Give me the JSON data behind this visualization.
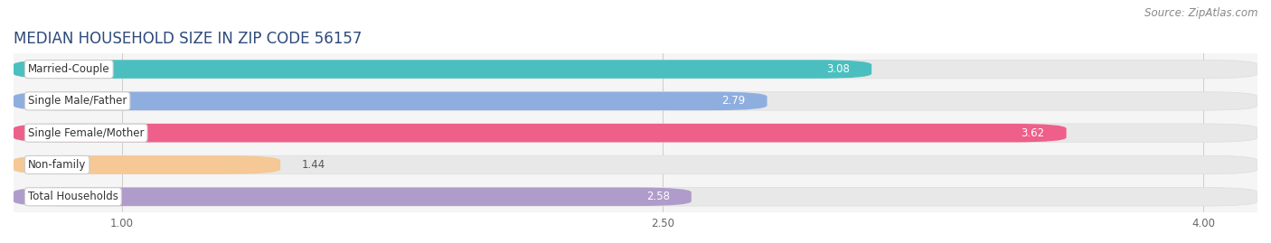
{
  "title": "MEDIAN HOUSEHOLD SIZE IN ZIP CODE 56157",
  "source": "Source: ZipAtlas.com",
  "categories": [
    "Married-Couple",
    "Single Male/Father",
    "Single Female/Mother",
    "Non-family",
    "Total Households"
  ],
  "values": [
    3.08,
    2.79,
    3.62,
    1.44,
    2.58
  ],
  "bar_colors": [
    "#4bbfbf",
    "#8faee0",
    "#ee5f8a",
    "#f5c896",
    "#b09cca"
  ],
  "xlim_left": 0.7,
  "xlim_right": 4.15,
  "xticks": [
    1.0,
    2.5,
    4.0
  ],
  "label_inside_threshold": 2.5,
  "title_fontsize": 12,
  "title_color": "#2e4a7a",
  "source_fontsize": 8.5,
  "bar_label_fontsize": 8.5,
  "category_fontsize": 8.5,
  "bar_height": 0.58,
  "bar_gap": 0.42,
  "background_color": "#ffffff",
  "axes_bg_color": "#f5f5f5",
  "bg_bar_color": "#e8e8e8",
  "grid_color": "#cccccc"
}
